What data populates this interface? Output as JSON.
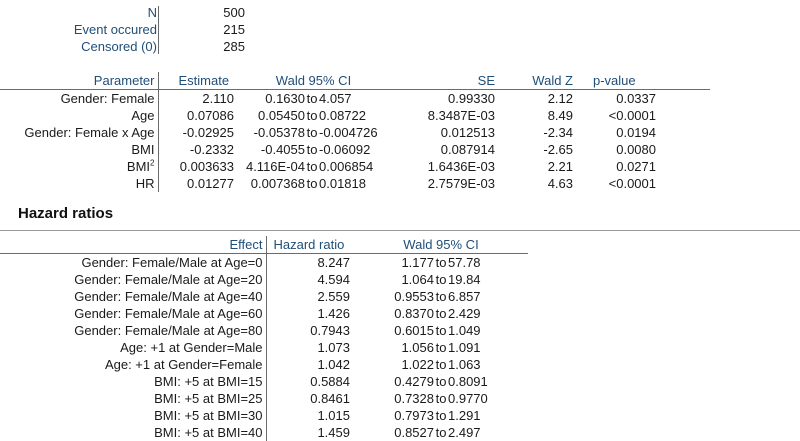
{
  "summary": {
    "rows": [
      {
        "label": "N",
        "value": "500"
      },
      {
        "label": "Event occured",
        "value": "215"
      },
      {
        "label": "Censored (0)",
        "value": "285"
      }
    ]
  },
  "parameters": {
    "headers": {
      "parameter": "Parameter",
      "estimate": "Estimate",
      "ci": "Wald 95% CI",
      "se": "SE",
      "z": "Wald Z",
      "p": "p-value"
    },
    "rows": [
      {
        "name": "Gender: Female",
        "sup": "",
        "estimate": "2.110",
        "ci_low": "0.1630",
        "ci_to": "to",
        "ci_high": "4.057",
        "se": "0.99330",
        "z": "2.12",
        "p": "0.0337"
      },
      {
        "name": "Age",
        "sup": "",
        "estimate": "0.07086",
        "ci_low": "0.05450",
        "ci_to": "to",
        "ci_high": "0.08722",
        "se": "8.3487E-03",
        "z": "8.49",
        "p": "<0.0001"
      },
      {
        "name": "Gender: Female x Age",
        "sup": "",
        "estimate": "-0.02925",
        "ci_low": "-0.05378",
        "ci_to": "to",
        "ci_high": "-0.004726",
        "se": "0.012513",
        "z": "-2.34",
        "p": "0.0194"
      },
      {
        "name": "BMI",
        "sup": "",
        "estimate": "-0.2332",
        "ci_low": "-0.4055",
        "ci_to": "to",
        "ci_high": "-0.06092",
        "se": "0.087914",
        "z": "-2.65",
        "p": "0.0080"
      },
      {
        "name": "BMI",
        "sup": "2",
        "estimate": "0.003633",
        "ci_low": "4.116E-04",
        "ci_to": "to",
        "ci_high": "0.006854",
        "se": "1.6436E-03",
        "z": "2.21",
        "p": "0.0271"
      },
      {
        "name": "HR",
        "sup": "",
        "estimate": "0.01277",
        "ci_low": "0.007368",
        "ci_to": "to",
        "ci_high": "0.01818",
        "se": "2.7579E-03",
        "z": "4.63",
        "p": "<0.0001"
      }
    ]
  },
  "hazard": {
    "title": "Hazard ratios",
    "headers": {
      "effect": "Effect",
      "ratio": "Hazard ratio",
      "ci": "Wald 95% CI"
    },
    "rows": [
      {
        "effect": "Gender: Female/Male at Age=0",
        "ratio": "8.247",
        "ci_low": "1.177",
        "ci_to": "to",
        "ci_high": "57.78"
      },
      {
        "effect": "Gender: Female/Male at Age=20",
        "ratio": "4.594",
        "ci_low": "1.064",
        "ci_to": "to",
        "ci_high": "19.84"
      },
      {
        "effect": "Gender: Female/Male at Age=40",
        "ratio": "2.559",
        "ci_low": "0.9553",
        "ci_to": "to",
        "ci_high": "6.857"
      },
      {
        "effect": "Gender: Female/Male at Age=60",
        "ratio": "1.426",
        "ci_low": "0.8370",
        "ci_to": "to",
        "ci_high": "2.429"
      },
      {
        "effect": "Gender: Female/Male at Age=80",
        "ratio": "0.7943",
        "ci_low": "0.6015",
        "ci_to": "to",
        "ci_high": "1.049"
      },
      {
        "effect": "Age: +1 at Gender=Male",
        "ratio": "1.073",
        "ci_low": "1.056",
        "ci_to": "to",
        "ci_high": "1.091"
      },
      {
        "effect": "Age: +1 at Gender=Female",
        "ratio": "1.042",
        "ci_low": "1.022",
        "ci_to": "to",
        "ci_high": "1.063"
      },
      {
        "effect": "BMI: +5 at BMI=15",
        "ratio": "0.5884",
        "ci_low": "0.4279",
        "ci_to": "to",
        "ci_high": "0.8091"
      },
      {
        "effect": "BMI: +5 at BMI=25",
        "ratio": "0.8461",
        "ci_low": "0.7328",
        "ci_to": "to",
        "ci_high": "0.9770"
      },
      {
        "effect": "BMI: +5 at BMI=30",
        "ratio": "1.015",
        "ci_low": "0.7973",
        "ci_to": "to",
        "ci_high": "1.291"
      },
      {
        "effect": "BMI: +5 at BMI=40",
        "ratio": "1.459",
        "ci_low": "0.8527",
        "ci_to": "to",
        "ci_high": "2.497"
      }
    ]
  },
  "colors": {
    "header_text": "#1f4e79",
    "rule": "#6b6b6b"
  }
}
